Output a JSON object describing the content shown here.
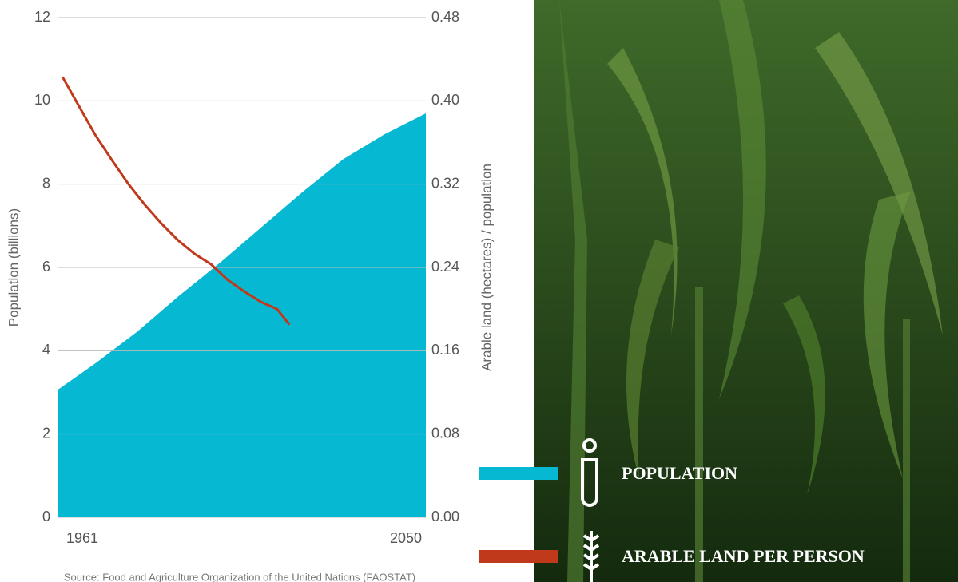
{
  "chart_data": {
    "type": "area-line",
    "ylabel": "Population (billions)",
    "y2label": "Arable land (hectares) / population",
    "source": "Source: Food and Agriculture Organization of the United Nations (FAOSTAT)",
    "xlim": [
      1961,
      2050
    ],
    "xticks": [
      1961,
      2050
    ],
    "ylim": [
      0,
      12
    ],
    "yticks": [
      0,
      2,
      4,
      6,
      8,
      10,
      12
    ],
    "y2lim": [
      0,
      0.48
    ],
    "y2ticks": [
      {
        "value": 0,
        "label": "0.00"
      },
      {
        "value": 0.08,
        "label": "0.08"
      },
      {
        "value": 0.16,
        "label": "0.16"
      },
      {
        "value": 0.24,
        "label": "0.24"
      },
      {
        "value": 0.32,
        "label": "0.32"
      },
      {
        "value": 0.4,
        "label": "0.40"
      },
      {
        "value": 0.48,
        "label": "0.48"
      }
    ],
    "grid": true,
    "series": [
      {
        "name": "POPULATION",
        "color": "#06b8d2",
        "kind": "area",
        "x": [
          1961,
          1970,
          1980,
          1990,
          2000,
          2010,
          2020,
          2030,
          2040,
          2050
        ],
        "values": [
          3.07,
          3.7,
          4.45,
          5.3,
          6.1,
          6.95,
          7.8,
          8.6,
          9.2,
          9.7
        ]
      },
      {
        "name": "ARABLE LAND PER PERSON",
        "color": "#c0391b",
        "kind": "line",
        "axis": "y2",
        "x": [
          1962,
          1966,
          1970,
          1974,
          1978,
          1982,
          1986,
          1990,
          1994,
          1998,
          2002,
          2006,
          2010,
          2014,
          2017
        ],
        "values": [
          0.423,
          0.395,
          0.367,
          0.343,
          0.32,
          0.3,
          0.282,
          0.266,
          0.253,
          0.243,
          0.228,
          0.217,
          0.207,
          0.2,
          0.185
        ]
      }
    ]
  }
}
